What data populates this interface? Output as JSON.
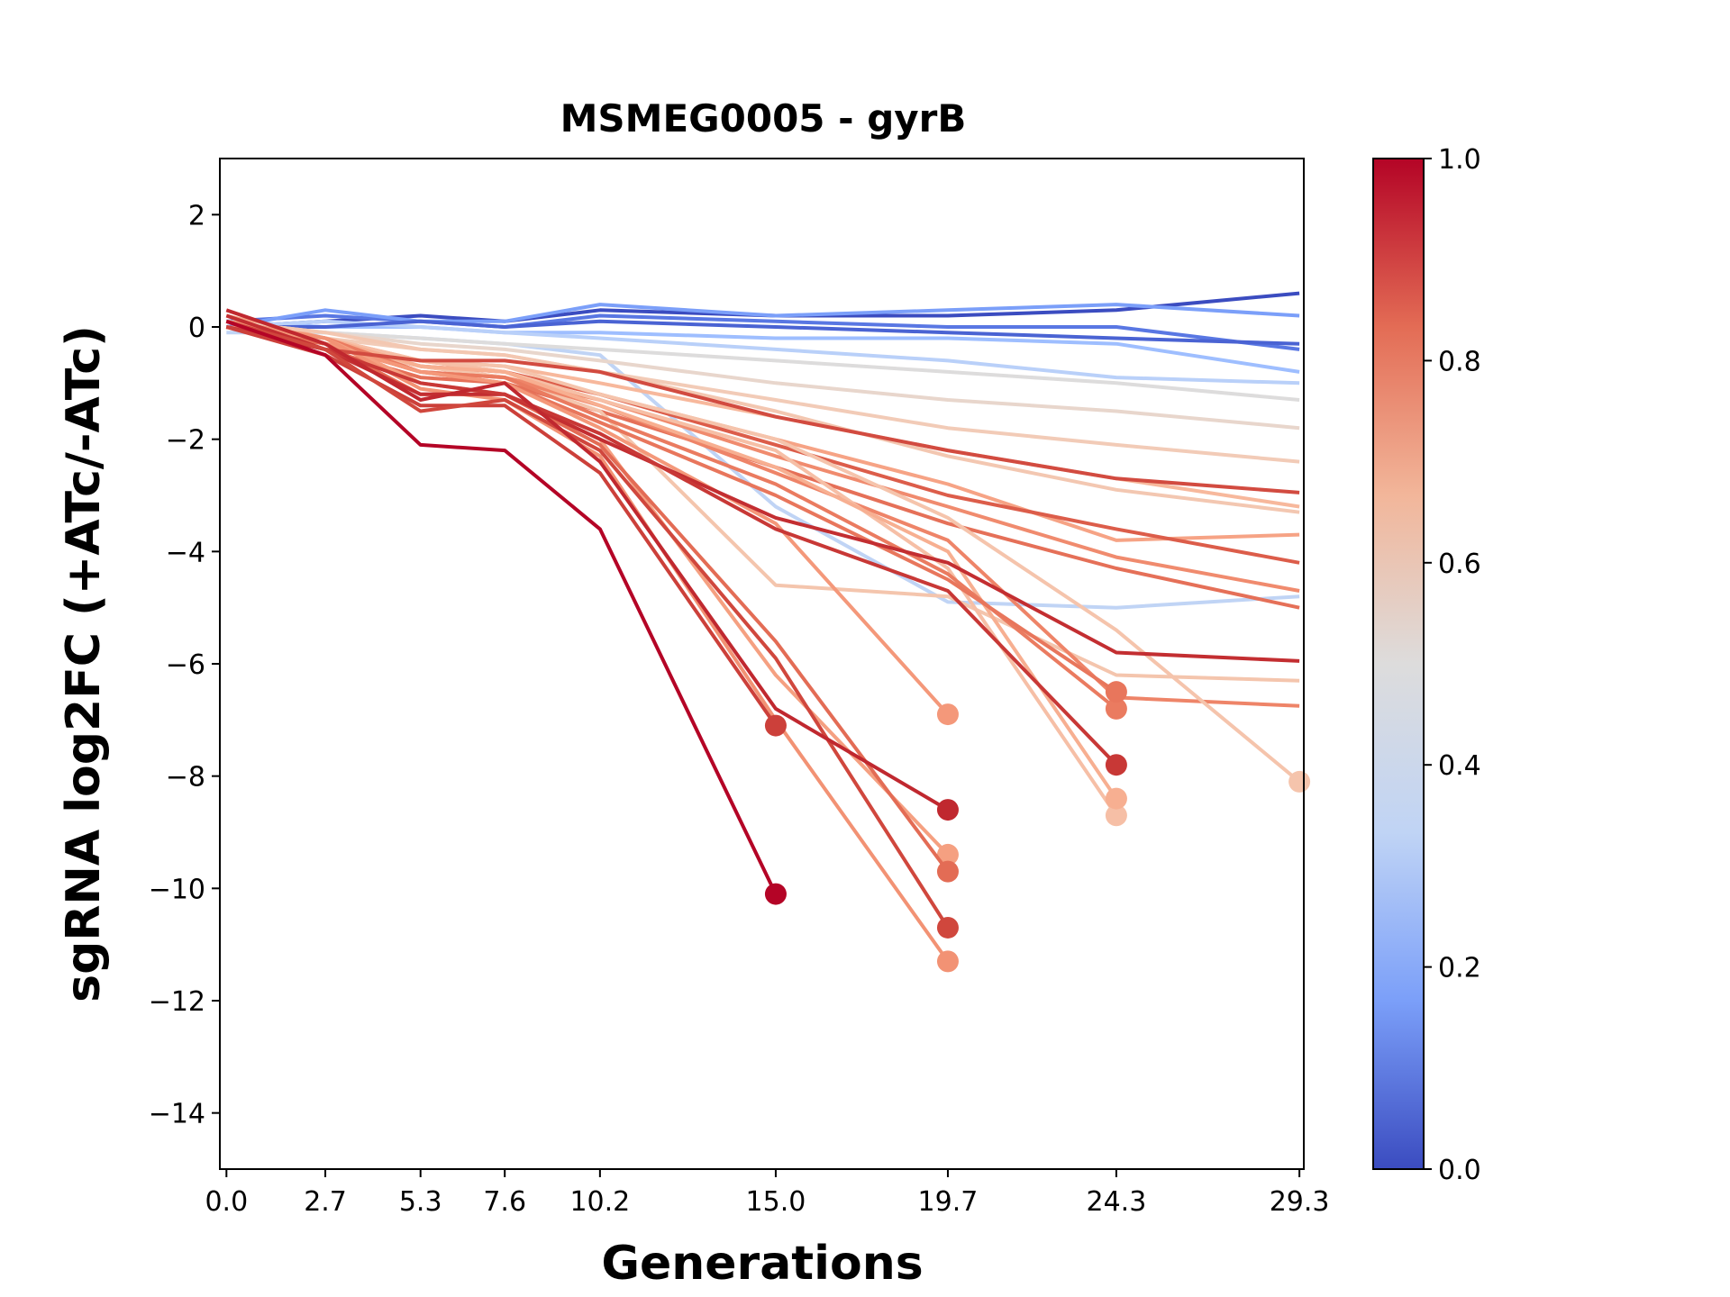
{
  "chart_data": {
    "type": "line",
    "title": "MSMEG0005 - gyrB",
    "xlabel": "Generations",
    "ylabel": "sgRNA log2FC (+ATc/-ATc)",
    "x": [
      0,
      2.7,
      5.3,
      7.6,
      10.2,
      15,
      19.7,
      24.3,
      29.3
    ],
    "xlim": [
      -0.18,
      29.42
    ],
    "xticks": [
      {
        "value": 0,
        "label": "0.0"
      },
      2.7,
      5.3,
      7.6,
      10.2,
      {
        "value": 15,
        "label": "15.0"
      },
      19.7,
      24.3,
      29.3
    ],
    "ylim": [
      -15,
      3
    ],
    "yticks": [
      {
        "value": -14,
        "label": "−14"
      },
      {
        "value": -12,
        "label": "−12"
      },
      {
        "value": -10,
        "label": "−10"
      },
      {
        "value": -8,
        "label": "−8"
      },
      {
        "value": -6,
        "label": "−6"
      },
      {
        "value": -4,
        "label": "−4"
      },
      {
        "value": -2,
        "label": "−2"
      },
      0,
      2
    ],
    "colorbar": {
      "lim": [
        0,
        1
      ],
      "ticks": [
        {
          "value": 0,
          "label": "0.0"
        },
        {
          "value": 0.2,
          "label": "0.2"
        },
        {
          "value": 0.4,
          "label": "0.4"
        },
        {
          "value": 0.6,
          "label": "0.6"
        },
        {
          "value": 0.8,
          "label": "0.8"
        },
        {
          "value": 1,
          "label": "1.0"
        }
      ],
      "colors": [
        "#3b4cc0",
        "#7b9ff9",
        "#c0d4f5",
        "#dddcdc",
        "#f2b69a",
        "#e36c55",
        "#b40426"
      ]
    },
    "series": [
      {
        "color": "#3b4cc0",
        "marker": false,
        "values": [
          0,
          0.1,
          0.2,
          0.1,
          0.3,
          0.2,
          0.2,
          0.3,
          0.6
        ]
      },
      {
        "color": "#5977e3",
        "marker": false,
        "values": [
          0.1,
          0.2,
          0.1,
          0,
          0.2,
          0.1,
          0,
          0,
          -0.4
        ]
      },
      {
        "color": "#7b9ff9",
        "marker": false,
        "values": [
          0,
          0.3,
          0.1,
          0.1,
          0.4,
          0.2,
          0.3,
          0.4,
          0.2
        ]
      },
      {
        "color": "#9ebeff",
        "marker": false,
        "values": [
          0.1,
          0,
          0,
          -0.1,
          -0.1,
          -0.2,
          -0.2,
          -0.3,
          -0.8
        ]
      },
      {
        "color": "#c0d4f5",
        "marker": false,
        "values": [
          -0.1,
          -0.1,
          -0.2,
          -0.3,
          -0.5,
          -3.2,
          -4.9,
          -5,
          -4.8
        ]
      },
      {
        "color": "#dddcdc",
        "marker": false,
        "values": [
          0,
          -0.1,
          -0.2,
          -0.3,
          -0.4,
          -0.6,
          -0.8,
          -1,
          -1.3
        ]
      },
      {
        "color": "#b9d0f9",
        "marker": false,
        "values": [
          0,
          0.1,
          0,
          -0.1,
          -0.2,
          -0.4,
          -0.6,
          -0.9,
          -1
        ]
      },
      {
        "color": "#4a63d3",
        "marker": false,
        "values": [
          0,
          0,
          0.1,
          0,
          0.1,
          0,
          -0.1,
          -0.2,
          -0.3
        ]
      },
      {
        "color": "#e8d6cc",
        "marker": false,
        "values": [
          0.1,
          -0.1,
          -0.3,
          -0.4,
          -0.6,
          -1,
          -1.3,
          -1.5,
          -1.8
        ]
      },
      {
        "color": "#f2cbb7",
        "marker": false,
        "values": [
          0.1,
          -0.2,
          -0.4,
          -0.5,
          -0.8,
          -1.3,
          -1.8,
          -2.1,
          -2.4
        ]
      },
      {
        "color": "#f7b89c",
        "marker": false,
        "values": [
          0,
          -0.3,
          -0.6,
          -0.7,
          -1,
          -1.6,
          -2.2,
          -2.7,
          -3.2
        ]
      },
      {
        "color": "#f6a385",
        "marker": false,
        "values": [
          0.2,
          -0.2,
          -0.6,
          -0.8,
          -1.2,
          -2,
          -2.8,
          -3.8,
          -3.7
        ]
      },
      {
        "color": "#f08b6e",
        "marker": false,
        "values": [
          0.1,
          -0.3,
          -0.7,
          -0.9,
          -1.3,
          -2.3,
          -3.2,
          -4.1,
          -4.7
        ]
      },
      {
        "color": "#e57058",
        "marker": false,
        "values": [
          0,
          -0.4,
          -0.9,
          -1,
          -1.5,
          -2.5,
          -3.5,
          -4.3,
          -5
        ]
      },
      {
        "color": "#f3c7b1",
        "marker": false,
        "values": [
          0.1,
          -0.1,
          -0.4,
          -0.5,
          -0.8,
          -1.5,
          -2.3,
          -2.9,
          -3.3
        ]
      },
      {
        "color": "#dc5d4a",
        "marker": false,
        "values": [
          0,
          -0.3,
          -0.7,
          -0.8,
          -1.2,
          -2.1,
          -3,
          -3.6,
          -4.2
        ]
      },
      {
        "color": "#f4c5ad",
        "marker": false,
        "values": [
          0.1,
          -0.3,
          -0.7,
          -0.9,
          -1.5,
          -4.6,
          -4.8,
          -6.2,
          -6.3
        ]
      },
      {
        "color": "#ee8468",
        "marker": false,
        "values": [
          0,
          -0.3,
          -0.8,
          -0.9,
          -1.4,
          -2.6,
          -3.8,
          -6.6,
          -6.75
        ]
      },
      {
        "color": "#f5c4ac",
        "marker": true,
        "values": [
          0,
          -0.2,
          -0.6,
          -0.7,
          -1.2,
          -2,
          -3.4,
          -5.4,
          -8.1
        ]
      },
      {
        "color": "#f6bfa6",
        "marker": true,
        "values": [
          0,
          -0.2,
          -0.6,
          -0.8,
          -1.3,
          -2.2,
          -4.3,
          -8.7,
          null
        ]
      },
      {
        "color": "#f7af91",
        "marker": true,
        "values": [
          0.1,
          -0.2,
          -0.7,
          -0.8,
          -1.4,
          -2.5,
          -4,
          -8.4,
          null
        ]
      },
      {
        "color": "#ea7b60",
        "marker": true,
        "values": [
          0.1,
          -0.2,
          -0.8,
          -0.9,
          -1.6,
          -2.8,
          -4.4,
          -6.8,
          null
        ]
      },
      {
        "color": "#e8765c",
        "marker": true,
        "values": [
          0.1,
          -0.3,
          -0.8,
          -1,
          -1.7,
          -3,
          -4.5,
          -6.5,
          null
        ]
      },
      {
        "color": "#f4987a",
        "marker": true,
        "values": [
          0.1,
          -0.3,
          -0.8,
          -1,
          -1.8,
          -3.5,
          -6.9,
          null,
          null
        ]
      },
      {
        "color": "#f5a081",
        "marker": true,
        "values": [
          0.1,
          -0.2,
          -1,
          -1.2,
          -2,
          -6.2,
          -9.4,
          null,
          null
        ]
      },
      {
        "color": "#f29274",
        "marker": true,
        "values": [
          0.1,
          -0.2,
          -1.1,
          -1.3,
          -2.3,
          -7,
          -11.3,
          null,
          null
        ]
      },
      {
        "color": "#e36c55",
        "marker": true,
        "values": [
          0,
          -0.3,
          -1.2,
          -1.2,
          -2.1,
          -5.6,
          -9.7,
          null,
          null
        ]
      },
      {
        "color": "#d24b40",
        "marker": false,
        "values": [
          0,
          -0.4,
          -0.6,
          -0.6,
          -0.8,
          -1.6,
          -2.2,
          -2.7,
          -2.95
        ]
      },
      {
        "color": "#c32e31",
        "marker": false,
        "values": [
          0.2,
          -0.4,
          -1.2,
          -1.2,
          -2,
          -3.4,
          -4.2,
          -5.8,
          -5.95
        ]
      },
      {
        "color": "#c83836",
        "marker": true,
        "values": [
          0,
          -0.4,
          -1,
          -1.2,
          -1.9,
          -3.6,
          -4.7,
          -7.8,
          null
        ]
      },
      {
        "color": "#cc403a",
        "marker": true,
        "values": [
          0,
          -0.5,
          -1.4,
          -1.4,
          -2.6,
          -7.1,
          null,
          null,
          null
        ]
      },
      {
        "color": "#d0473d",
        "marker": true,
        "values": [
          0.1,
          -0.4,
          -1.5,
          -1.3,
          -2.2,
          -5.9,
          -10.7,
          null,
          null
        ]
      },
      {
        "color": "#c0282f",
        "marker": true,
        "values": [
          0.3,
          -0.3,
          -1.3,
          -1,
          -2.4,
          -6.8,
          -8.6,
          null,
          null
        ]
      },
      {
        "color": "#b40426",
        "marker": true,
        "values": [
          0.1,
          -0.5,
          -2.1,
          -2.2,
          -3.6,
          -10.1,
          null,
          null,
          null
        ]
      }
    ]
  }
}
